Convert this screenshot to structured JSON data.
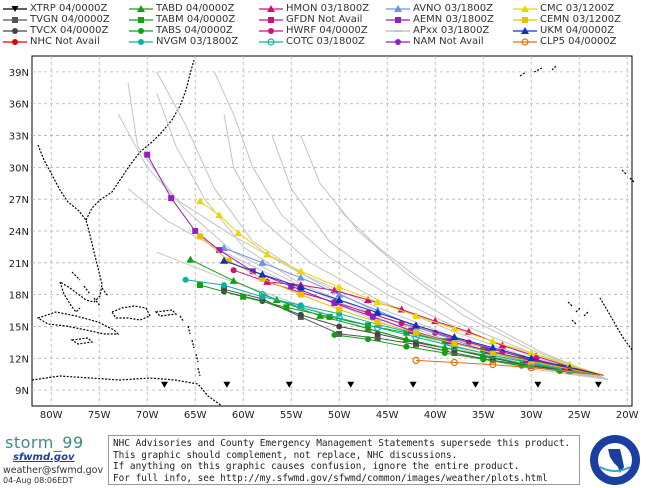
{
  "legend": [
    {
      "label": "XTRP 04/0000Z",
      "color": "#000000",
      "marker": "triangle-down"
    },
    {
      "label": "TVGN 04/0000Z",
      "color": "#555555",
      "marker": "square"
    },
    {
      "label": "TVCX 04/0000Z",
      "color": "#444444",
      "marker": "circle"
    },
    {
      "label": "NHC Not Avail",
      "color": "#e00000",
      "marker": "circle"
    },
    {
      "label": "TABD 04/0000Z",
      "color": "#10a010",
      "marker": "triangle"
    },
    {
      "label": "TABM 04/0000Z",
      "color": "#10a010",
      "marker": "square"
    },
    {
      "label": "TABS 04/0000Z",
      "color": "#10a010",
      "marker": "circle"
    },
    {
      "label": "NVGM 03/1800Z",
      "color": "#10b0a0",
      "marker": "circle"
    },
    {
      "label": "HMON 03/1800Z",
      "color": "#d0107a",
      "marker": "triangle"
    },
    {
      "label": "GFDN Not Avail",
      "color": "#d0107a",
      "marker": "square"
    },
    {
      "label": "HWRF 04/0000Z",
      "color": "#d0107a",
      "marker": "circle"
    },
    {
      "label": "COTC 03/1800Z",
      "color": "#10b0a0",
      "marker": "ring"
    },
    {
      "label": "AVNO 03/1800Z",
      "color": "#7090e0",
      "marker": "triangle"
    },
    {
      "label": "AEMN 03/1800Z",
      "color": "#9020c0",
      "marker": "square"
    },
    {
      "label": "APxx 03/1800Z",
      "color": "#b8b8b8",
      "marker": "line"
    },
    {
      "label": "NAM Not Avail",
      "color": "#9020c0",
      "marker": "circle"
    },
    {
      "label": "CMC 03/1200Z",
      "color": "#e8d800",
      "marker": "triangle"
    },
    {
      "label": "CEMN 03/1200Z",
      "color": "#e8c000",
      "marker": "square"
    },
    {
      "label": "UKM 04/0000Z",
      "color": "#1030c0",
      "marker": "triangle"
    },
    {
      "label": "CLP5 04/0000Z",
      "color": "#e07010",
      "marker": "ring"
    }
  ],
  "map": {
    "lon_range": [
      -82,
      -19.5
    ],
    "lat_range": [
      7.5,
      40.5
    ],
    "x_ticks": [
      "80W",
      "75W",
      "70W",
      "65W",
      "60W",
      "55W",
      "50W",
      "45W",
      "40W",
      "35W",
      "30W",
      "25W",
      "20W"
    ],
    "y_ticks": [
      "9N",
      "12N",
      "15N",
      "18N",
      "21N",
      "24N",
      "27N",
      "30N",
      "33N",
      "36N",
      "39N"
    ],
    "tracks": [
      {
        "name": "XTRP",
        "color": "#000000",
        "marker": "triangle-down",
        "pts": [
          [
            -23,
            9.5
          ],
          [
            -29.3,
            9.5
          ],
          [
            -35.8,
            9.5
          ],
          [
            -42.3,
            9.5
          ],
          [
            -48.8,
            9.5
          ],
          [
            -55.2,
            9.5
          ],
          [
            -61.7,
            9.5
          ],
          [
            -68.2,
            9.5
          ]
        ]
      },
      {
        "name": "TVGN",
        "color": "#555555",
        "marker": "square",
        "pts": [
          [
            -22.5,
            10.4
          ],
          [
            -26,
            10.8
          ],
          [
            -30,
            11.3
          ],
          [
            -34,
            11.8
          ],
          [
            -38,
            12.5
          ],
          [
            -42,
            13.3
          ],
          [
            -46,
            13.9
          ],
          [
            -50,
            14.3
          ],
          [
            -54,
            15.9
          ],
          [
            -58,
            17.6
          ],
          [
            -62,
            18.5
          ]
        ]
      },
      {
        "name": "TVCX",
        "color": "#444444",
        "marker": "circle",
        "pts": [
          [
            -22.5,
            10.4
          ],
          [
            -26,
            10.8
          ],
          [
            -30,
            11.3
          ],
          [
            -34,
            12
          ],
          [
            -38,
            12.8
          ],
          [
            -42,
            13.5
          ],
          [
            -46,
            14.3
          ],
          [
            -50,
            15
          ],
          [
            -54,
            16.1
          ],
          [
            -58,
            17.4
          ],
          [
            -62,
            18.3
          ]
        ]
      },
      {
        "name": "TABD",
        "color": "#10a010",
        "marker": "triangle",
        "pts": [
          [
            -22.5,
            10.4
          ],
          [
            -27,
            11
          ],
          [
            -31,
            11.5
          ],
          [
            -35,
            12.3
          ],
          [
            -39,
            13
          ],
          [
            -43,
            13.8
          ],
          [
            -47,
            14.8
          ],
          [
            -52,
            16
          ],
          [
            -56.5,
            17.5
          ],
          [
            -61,
            19.3
          ],
          [
            -65.5,
            21.3
          ]
        ]
      },
      {
        "name": "TABM",
        "color": "#10a010",
        "marker": "square",
        "pts": [
          [
            -22.5,
            10.4
          ],
          [
            -27,
            11.2
          ],
          [
            -31,
            12
          ],
          [
            -35,
            12.8
          ],
          [
            -39,
            13.6
          ],
          [
            -43,
            14.4
          ],
          [
            -47,
            15.1
          ],
          [
            -51,
            15.9
          ],
          [
            -55.5,
            16.8
          ],
          [
            -60,
            17.8
          ],
          [
            -64.5,
            18.9
          ]
        ]
      },
      {
        "name": "TABS",
        "color": "#10a010",
        "marker": "circle",
        "pts": [
          [
            -22.5,
            10.4
          ],
          [
            -27,
            10.8
          ],
          [
            -31,
            11.3
          ],
          [
            -35,
            11.9
          ],
          [
            -39,
            12.5
          ],
          [
            -43,
            13.1
          ],
          [
            -47,
            13.8
          ],
          [
            -50.5,
            14.2
          ]
        ]
      },
      {
        "name": "NVGM",
        "color": "#10b0a0",
        "marker": "circle",
        "pts": [
          [
            -22.5,
            10.4
          ],
          [
            -26,
            10.8
          ],
          [
            -30,
            11.6
          ],
          [
            -34,
            12.5
          ],
          [
            -38,
            13.4
          ],
          [
            -42,
            14.3
          ],
          [
            -46,
            15.2
          ],
          [
            -50,
            16.2
          ],
          [
            -54,
            17
          ],
          [
            -58,
            17.8
          ],
          [
            -62,
            18.9
          ],
          [
            -66,
            19.4
          ]
        ]
      },
      {
        "name": "HMON",
        "color": "#d0107a",
        "marker": "triangle",
        "pts": [
          [
            -22.5,
            10.4
          ],
          [
            -26,
            11.2
          ],
          [
            -29.5,
            12.2
          ],
          [
            -33,
            13.2
          ],
          [
            -36.5,
            14.5
          ],
          [
            -40,
            15.5
          ],
          [
            -43.5,
            16.6
          ],
          [
            -47,
            17.5
          ],
          [
            -50.5,
            18.4
          ],
          [
            -54,
            18.9
          ],
          [
            -57.5,
            19.2
          ]
        ]
      },
      {
        "name": "HWRF",
        "color": "#d0107a",
        "marker": "circle",
        "pts": [
          [
            -22.5,
            10.4
          ],
          [
            -26,
            11
          ],
          [
            -29.5,
            11.8
          ],
          [
            -33,
            12.6
          ],
          [
            -36.5,
            13.5
          ],
          [
            -40,
            14.4
          ],
          [
            -43.5,
            15.3
          ],
          [
            -47,
            16.3
          ],
          [
            -50.5,
            17.3
          ],
          [
            -54,
            18.2
          ],
          [
            -57.5,
            19.2
          ],
          [
            -61,
            20.3
          ]
        ]
      },
      {
        "name": "COTC",
        "color": "#10b0a0",
        "marker": "ring",
        "pts": [
          [
            -22.5,
            10.4
          ],
          [
            -26,
            10.9
          ],
          [
            -30,
            11.5
          ],
          [
            -34,
            12.3
          ],
          [
            -38,
            13.1
          ],
          [
            -42,
            14
          ],
          [
            -46,
            14.9
          ],
          [
            -50,
            15.8
          ],
          [
            -54,
            16.8
          ],
          [
            -58,
            18
          ]
        ]
      },
      {
        "name": "AVNO",
        "color": "#7090e0",
        "marker": "triangle",
        "pts": [
          [
            -22.5,
            10.4
          ],
          [
            -26,
            11
          ],
          [
            -30,
            11.6
          ],
          [
            -34,
            12.5
          ],
          [
            -38,
            13.7
          ],
          [
            -42,
            15
          ],
          [
            -46,
            16.5
          ],
          [
            -50,
            18
          ],
          [
            -54,
            19.6
          ],
          [
            -58,
            21
          ],
          [
            -62,
            22.4
          ]
        ]
      },
      {
        "name": "AEMN",
        "color": "#9020c0",
        "marker": "square",
        "pts": [
          [
            -22.5,
            10.4
          ],
          [
            -26.5,
            11.1
          ],
          [
            -30.5,
            11.8
          ],
          [
            -34.5,
            12.7
          ],
          [
            -38.5,
            13.6
          ],
          [
            -42.5,
            14.6
          ],
          [
            -46.5,
            15.9
          ],
          [
            -50.5,
            17.2
          ],
          [
            -55,
            18.8
          ],
          [
            -59,
            20.2
          ],
          [
            -62.5,
            22.2
          ],
          [
            -65,
            24
          ],
          [
            -67.5,
            27.1
          ],
          [
            -70,
            31.2
          ]
        ]
      },
      {
        "name": "CMC",
        "color": "#e8d800",
        "marker": "triangle",
        "pts": [
          [
            -22.5,
            10.4
          ],
          [
            -26,
            11.4
          ],
          [
            -30,
            12.5
          ],
          [
            -34,
            13.6
          ],
          [
            -38,
            14.8
          ],
          [
            -42,
            16
          ],
          [
            -46,
            17.3
          ],
          [
            -50,
            18.7
          ],
          [
            -54,
            20.2
          ],
          [
            -57.5,
            21.8
          ],
          [
            -60.5,
            23.8
          ],
          [
            -62.5,
            25.5
          ],
          [
            -64.5,
            26.8
          ]
        ]
      },
      {
        "name": "CEMN",
        "color": "#e8c000",
        "marker": "square",
        "pts": [
          [
            -22.5,
            10.4
          ],
          [
            -26,
            11
          ],
          [
            -30,
            11.7
          ],
          [
            -34,
            12.5
          ],
          [
            -38,
            13.4
          ],
          [
            -42,
            14.4
          ],
          [
            -46,
            15.4
          ],
          [
            -50,
            16.6
          ],
          [
            -54,
            18
          ],
          [
            -58,
            19.5
          ],
          [
            -61.5,
            21.2
          ],
          [
            -64.5,
            23.5
          ]
        ]
      },
      {
        "name": "UKM",
        "color": "#1030c0",
        "marker": "triangle",
        "pts": [
          [
            -22.5,
            10.4
          ],
          [
            -26,
            11.1
          ],
          [
            -30,
            12
          ],
          [
            -34,
            13
          ],
          [
            -38,
            14
          ],
          [
            -42,
            15.1
          ],
          [
            -46,
            16.3
          ],
          [
            -50,
            17.5
          ],
          [
            -54,
            18.7
          ],
          [
            -58,
            19.9
          ],
          [
            -62,
            21.2
          ]
        ]
      },
      {
        "name": "CLP5",
        "color": "#e07010",
        "marker": "ring",
        "pts": [
          [
            -22.5,
            10.4
          ],
          [
            -26,
            10.8
          ],
          [
            -30,
            11.1
          ],
          [
            -34,
            11.4
          ],
          [
            -38,
            11.6
          ],
          [
            -42,
            11.8
          ]
        ]
      }
    ],
    "ensemble_tracks": [
      [
        [
          -22,
          10
        ],
        [
          -30,
          11.5
        ],
        [
          -38,
          13.5
        ],
        [
          -46,
          16
        ],
        [
          -54,
          19
        ],
        [
          -60,
          22.5
        ],
        [
          -64,
          27
        ],
        [
          -67,
          32
        ],
        [
          -69,
          37
        ]
      ],
      [
        [
          -22,
          10
        ],
        [
          -30,
          12
        ],
        [
          -38,
          14.5
        ],
        [
          -46,
          17.5
        ],
        [
          -53,
          21
        ],
        [
          -58,
          25
        ],
        [
          -61,
          30
        ],
        [
          -62,
          35
        ]
      ],
      [
        [
          -22,
          10
        ],
        [
          -30,
          12.5
        ],
        [
          -38,
          15.5
        ],
        [
          -45,
          19
        ],
        [
          -51,
          23
        ],
        [
          -55,
          28
        ],
        [
          -57,
          33
        ]
      ],
      [
        [
          -22,
          10
        ],
        [
          -30,
          11.8
        ],
        [
          -38,
          14
        ],
        [
          -46,
          16.8
        ],
        [
          -54,
          20
        ],
        [
          -61,
          23.5
        ],
        [
          -67,
          27
        ],
        [
          -71,
          32
        ],
        [
          -72,
          38
        ]
      ],
      [
        [
          -22,
          10
        ],
        [
          -30,
          11.2
        ],
        [
          -38,
          13
        ],
        [
          -46,
          15.5
        ],
        [
          -54,
          18.5
        ],
        [
          -62,
          22
        ],
        [
          -68,
          25
        ],
        [
          -72,
          28
        ]
      ],
      [
        [
          -22,
          10
        ],
        [
          -30,
          11
        ],
        [
          -38,
          12.5
        ],
        [
          -46,
          14.5
        ],
        [
          -54,
          17
        ],
        [
          -62,
          19.5
        ],
        [
          -69,
          22
        ]
      ],
      [
        [
          -22,
          10
        ],
        [
          -30,
          12.8
        ],
        [
          -37,
          16
        ],
        [
          -43,
          20
        ],
        [
          -48,
          24
        ],
        [
          -52,
          28.5
        ],
        [
          -54,
          33
        ]
      ],
      [
        [
          -22,
          10
        ],
        [
          -29,
          12.6
        ],
        [
          -35,
          15.5
        ],
        [
          -41,
          19
        ],
        [
          -46,
          22.5
        ],
        [
          -50,
          26
        ]
      ],
      [
        [
          -22,
          10
        ],
        [
          -30,
          11.6
        ],
        [
          -38,
          13.8
        ],
        [
          -46,
          16.3
        ],
        [
          -53,
          19.5
        ],
        [
          -59,
          23
        ],
        [
          -63,
          28
        ],
        [
          -66,
          34
        ],
        [
          -69,
          39
        ]
      ],
      [
        [
          -22,
          10
        ],
        [
          -30,
          11.3
        ],
        [
          -38,
          13.2
        ],
        [
          -46,
          15.8
        ],
        [
          -54,
          18.8
        ],
        [
          -61,
          22
        ],
        [
          -66,
          26
        ],
        [
          -70,
          30
        ],
        [
          -73,
          35
        ]
      ],
      [
        [
          -22,
          10
        ],
        [
          -30,
          12.2
        ],
        [
          -38,
          15
        ],
        [
          -45,
          18
        ],
        [
          -51,
          21.5
        ],
        [
          -56,
          25.5
        ],
        [
          -59,
          30
        ],
        [
          -61,
          35
        ],
        [
          -63,
          39
        ]
      ]
    ]
  },
  "footer": {
    "brand_name": "storm_99",
    "brand_site": "sfwmd.gov",
    "email": "weather@sfwmd.gov",
    "timestamp": "04-Aug 08:06EDT",
    "notice": [
      "NHC Advisories and County Emergency Management Statements supersede this product.",
      "This graphic should complement, not replace, NHC discussions.",
      "If anything on this graphic causes confusion, ignore the entire product.",
      "For full info, see  http://my.sfwmd.gov/sfwmd/common/images/weather/plots.html"
    ],
    "seal_text": "SOUTH FLORIDA WATER MANAGEMENT DISTRICT"
  }
}
